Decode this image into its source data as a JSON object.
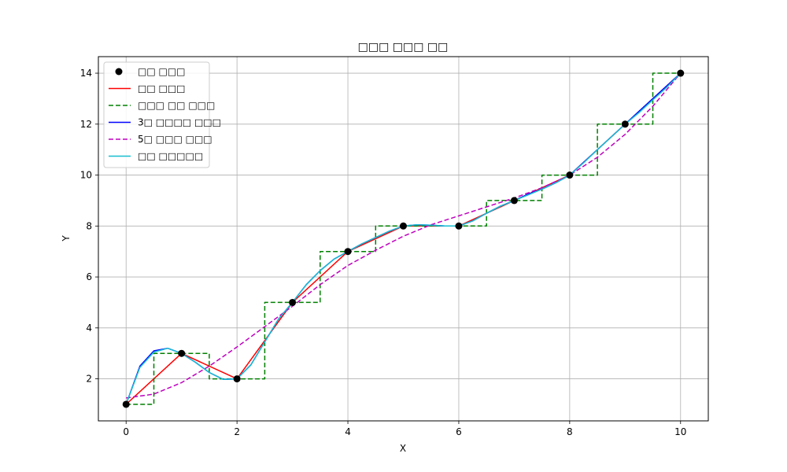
{
  "chart_data": {
    "type": "line",
    "title": "□□□ □□□ □□",
    "xlabel": "X",
    "ylabel": "Y",
    "xlim": [
      -0.5,
      10.5
    ],
    "ylim": [
      0.35,
      14.65
    ],
    "xticks": [
      0,
      2,
      4,
      6,
      8,
      10
    ],
    "yticks": [
      2,
      4,
      6,
      8,
      10,
      12,
      14
    ],
    "grid": true,
    "legend_position": "top-left",
    "points": {
      "name": "□□ □□□",
      "x": [
        0,
        1,
        2,
        3,
        4,
        5,
        6,
        7,
        8,
        9,
        10
      ],
      "y": [
        1,
        3,
        2,
        5,
        7,
        8,
        8,
        9,
        10,
        12,
        14
      ],
      "color": "#000000"
    },
    "series": [
      {
        "name": "□□ □□□",
        "style": "solid",
        "color": "#ff0000",
        "x": [
          0,
          1,
          2,
          3,
          4,
          5,
          6,
          7,
          8,
          9,
          10
        ],
        "y": [
          1,
          3,
          2,
          5,
          7,
          8,
          8,
          9,
          10,
          12,
          14
        ]
      },
      {
        "name": "□□□ □□ □□□",
        "style": "dashed",
        "color": "#008000",
        "x": [
          0,
          0.5,
          0.5,
          1.5,
          1.5,
          2.5,
          2.5,
          3.5,
          3.5,
          4.5,
          4.5,
          5.5,
          5.5,
          6.5,
          6.5,
          7.5,
          7.5,
          8.5,
          8.5,
          9.5,
          9.5,
          10
        ],
        "y": [
          1,
          1,
          3,
          3,
          2,
          2,
          5,
          5,
          7,
          7,
          8,
          8,
          8,
          8,
          9,
          9,
          10,
          10,
          12,
          12,
          14,
          14
        ]
      },
      {
        "name": "3□ □□□□ □□□",
        "style": "solid",
        "color": "#0000ff",
        "x": [
          0,
          0.25,
          0.5,
          0.75,
          1,
          1.25,
          1.5,
          1.75,
          2,
          2.25,
          2.5,
          2.75,
          3,
          3.25,
          3.5,
          3.75,
          4,
          4.25,
          4.5,
          4.75,
          5,
          5.25,
          5.5,
          5.75,
          6,
          6.25,
          6.5,
          6.75,
          7,
          7.25,
          7.5,
          7.75,
          8,
          8.25,
          8.5,
          8.75,
          9,
          9.25,
          9.5,
          9.75,
          10
        ],
        "y": [
          1.0,
          2.5,
          3.1,
          3.2,
          3.0,
          2.65,
          2.25,
          1.98,
          2.0,
          2.55,
          3.45,
          4.35,
          5.0,
          5.7,
          6.25,
          6.7,
          7.0,
          7.3,
          7.55,
          7.8,
          8.0,
          8.05,
          8.03,
          8.0,
          8.0,
          8.2,
          8.5,
          8.78,
          9.0,
          9.25,
          9.45,
          9.7,
          10.0,
          10.5,
          11.0,
          11.5,
          12.0,
          12.5,
          13.0,
          13.5,
          14.0
        ]
      },
      {
        "name": "5□ □□□ □□□",
        "style": "dashed",
        "color": "#bf00bf",
        "x": [
          0,
          0.5,
          1,
          1.5,
          2,
          2.5,
          3,
          3.5,
          4,
          4.5,
          5,
          5.5,
          6,
          6.5,
          7,
          7.5,
          8,
          8.5,
          9,
          9.5,
          10
        ],
        "y": [
          1.25,
          1.4,
          1.85,
          2.5,
          3.25,
          4.05,
          4.85,
          5.7,
          6.45,
          7.05,
          7.6,
          8.05,
          8.4,
          8.75,
          9.1,
          9.5,
          10.0,
          10.7,
          11.6,
          12.7,
          14.0
        ]
      },
      {
        "name": "□□ □□□□□",
        "style": "solid",
        "color": "#17becf",
        "x": [
          0,
          0.25,
          0.5,
          0.75,
          1,
          1.25,
          1.5,
          1.75,
          2,
          2.25,
          2.5,
          2.75,
          3,
          3.25,
          3.5,
          3.75,
          4,
          4.25,
          4.5,
          4.75,
          5,
          5.25,
          5.5,
          5.75,
          6,
          6.25,
          6.5,
          6.75,
          7,
          7.25,
          7.5,
          7.75,
          8,
          8.25,
          8.5,
          8.75,
          9,
          9.25,
          9.5,
          9.75,
          10
        ],
        "y": [
          1.0,
          2.45,
          3.05,
          3.2,
          3.0,
          2.65,
          2.25,
          1.98,
          2.0,
          2.55,
          3.45,
          4.35,
          5.0,
          5.7,
          6.25,
          6.7,
          7.0,
          7.3,
          7.55,
          7.8,
          8.0,
          8.05,
          8.03,
          8.0,
          8.0,
          8.2,
          8.5,
          8.78,
          9.0,
          9.22,
          9.45,
          9.7,
          10.0,
          10.48,
          11.0,
          11.5,
          12.0,
          12.45,
          12.95,
          13.45,
          14.0
        ]
      }
    ]
  }
}
